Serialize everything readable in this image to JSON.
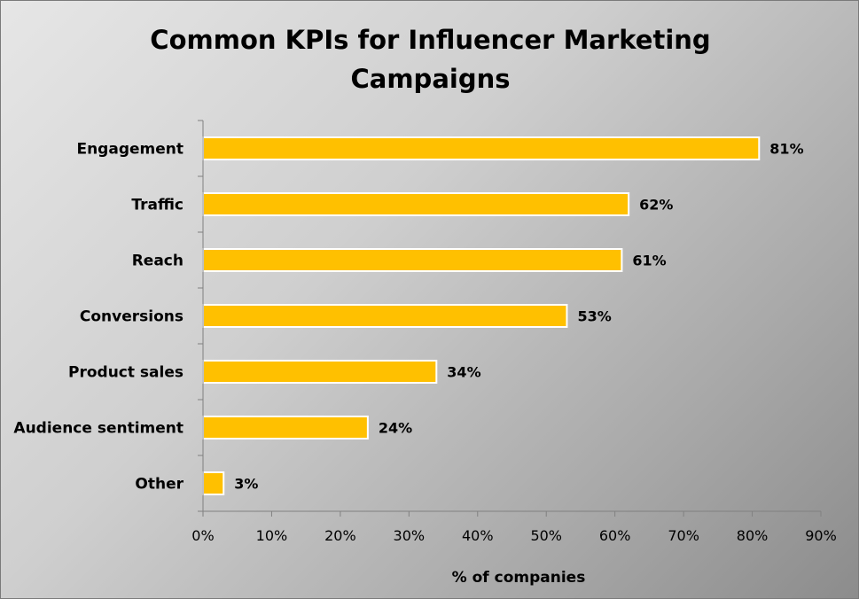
{
  "chart_data": {
    "type": "bar",
    "orientation": "horizontal",
    "title_lines": [
      "Common KPIs for Influencer Marketing",
      "Campaigns"
    ],
    "xlabel": "% of companies",
    "ylabel": "",
    "categories": [
      "Engagement",
      "Traffic",
      "Reach",
      "Conversions",
      "Product sales",
      "Audience sentiment",
      "Other"
    ],
    "values": [
      81,
      62,
      61,
      53,
      34,
      24,
      3
    ],
    "data_labels": [
      "81%",
      "62%",
      "61%",
      "53%",
      "34%",
      "24%",
      "3%"
    ],
    "xlim": [
      0,
      90
    ],
    "x_ticks": [
      0,
      10,
      20,
      30,
      40,
      50,
      60,
      70,
      80,
      90
    ],
    "x_tick_labels": [
      "0%",
      "10%",
      "20%",
      "30%",
      "40%",
      "50%",
      "60%",
      "70%",
      "80%",
      "90%"
    ],
    "bar_color": "#FFC000",
    "bar_border_color": "#FFFFFF",
    "grid": false,
    "legend": "none"
  }
}
